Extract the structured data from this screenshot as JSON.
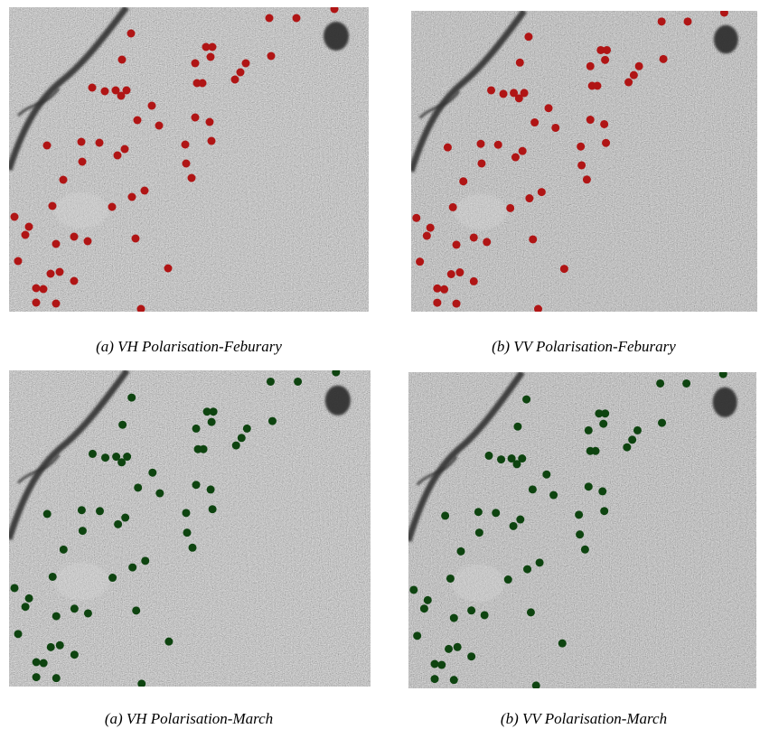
{
  "panels": [
    {
      "caption": "(a) VH Polarisation-Feburary"
    },
    {
      "caption": "(b) VV Polarisation-Feburary"
    },
    {
      "caption": "(a) VH Polarisation-March"
    },
    {
      "caption": "(b) VV Polarisation-March"
    }
  ]
}
